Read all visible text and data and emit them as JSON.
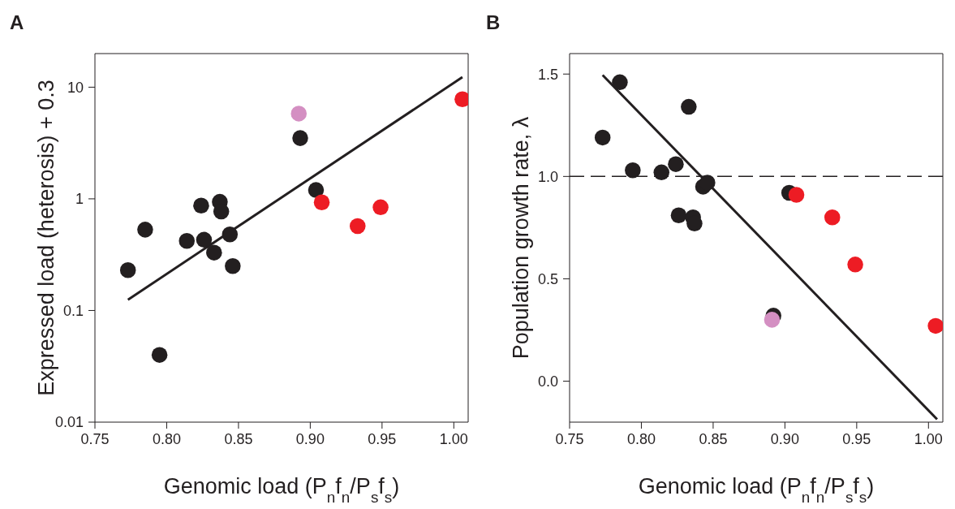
{
  "chart_data": [
    {
      "type": "scatter",
      "title": "A",
      "xlabel": "Genomic load ($_{}$P$_{n}$f$_{n}$/P$_{s}$f$_{s}$)",
      "ylabel": "Expressed load (heterosis) + 0.3",
      "log": "y",
      "grid": false,
      "xlim": [
        0.75,
        1.01
      ],
      "xticks": [
        {
          "value": 0.75,
          "label": "0.75"
        },
        {
          "value": 0.8,
          "label": "0.80"
        },
        {
          "value": 0.85,
          "label": "0.85"
        },
        {
          "value": 0.9,
          "label": "0.90"
        },
        {
          "value": 0.95,
          "label": "0.95"
        },
        {
          "value": 1.0,
          "label": "1.00"
        }
      ],
      "ylim": [
        0.01,
        20
      ],
      "yticks": [
        0.01,
        0.1,
        1,
        10
      ],
      "series": [
        {
          "color": "#231f20",
          "x": [
            0.773,
            0.785,
            0.795,
            0.814,
            0.824,
            0.826,
            0.833,
            0.837,
            0.838,
            0.844,
            0.846,
            0.893,
            0.904
          ],
          "values": [
            0.23,
            0.53,
            0.04,
            0.42,
            0.87,
            0.43,
            0.33,
            0.94,
            0.77,
            0.48,
            0.25,
            3.5,
            1.2
          ]
        },
        {
          "color": "#d48fc2",
          "x": [
            0.892
          ],
          "values": [
            5.8
          ]
        },
        {
          "color": "#ed1c24",
          "x": [
            0.908,
            0.933,
            0.949,
            1.006
          ],
          "values": [
            0.93,
            0.57,
            0.84,
            7.8
          ]
        },
        {
          "type": "line",
          "color": "#231f20",
          "line_style": "solid",
          "x": [
            0.773,
            1.006
          ],
          "values": [
            0.125,
            12.3
          ]
        }
      ]
    },
    {
      "type": "scatter",
      "title": "B",
      "xlabel": "Genomic load ($_{}$P$_{n}$f$_{n}$/P$_{s}$f$_{s}$)",
      "ylabel": "Population growth rate, λ",
      "grid": false,
      "xlim": [
        0.75,
        1.01
      ],
      "xticks": [
        {
          "value": 0.75,
          "label": "0.75"
        },
        {
          "value": 0.8,
          "label": "0.80"
        },
        {
          "value": 0.85,
          "label": "0.85"
        },
        {
          "value": 0.9,
          "label": "0.90"
        },
        {
          "value": 0.95,
          "label": "0.95"
        },
        {
          "value": 1.0,
          "label": "1.00"
        }
      ],
      "ylim": [
        -0.2,
        1.6
      ],
      "yticks": [
        {
          "value": 0,
          "label": "0.0"
        },
        {
          "value": 0.5,
          "label": "0.5"
        },
        {
          "value": 1,
          "label": "1.0"
        },
        {
          "value": 1.5,
          "label": "1.5"
        }
      ],
      "ref_lines": [
        {
          "axis": "y",
          "value": 1,
          "label": null,
          "color": "#231f20",
          "line_style": "dashed"
        }
      ],
      "series": [
        {
          "color": "#231f20",
          "x": [
            0.773,
            0.785,
            0.794,
            0.814,
            0.824,
            0.833,
            0.826,
            0.836,
            0.837,
            0.843,
            0.846,
            0.903,
            0.892
          ],
          "values": [
            1.19,
            1.46,
            1.03,
            1.02,
            1.06,
            1.34,
            0.81,
            0.8,
            0.77,
            0.95,
            0.97,
            0.92,
            0.32
          ]
        },
        {
          "color": "#d48fc2",
          "x": [
            0.891
          ],
          "values": [
            0.3
          ]
        },
        {
          "color": "#ed1c24",
          "x": [
            0.908,
            0.933,
            0.949,
            1.005
          ],
          "values": [
            0.91,
            0.8,
            0.57,
            0.27
          ]
        },
        {
          "type": "line",
          "color": "#231f20",
          "line_style": "solid",
          "x": [
            0.773,
            1.006
          ],
          "values": [
            1.495,
            -0.186
          ]
        }
      ]
    }
  ]
}
